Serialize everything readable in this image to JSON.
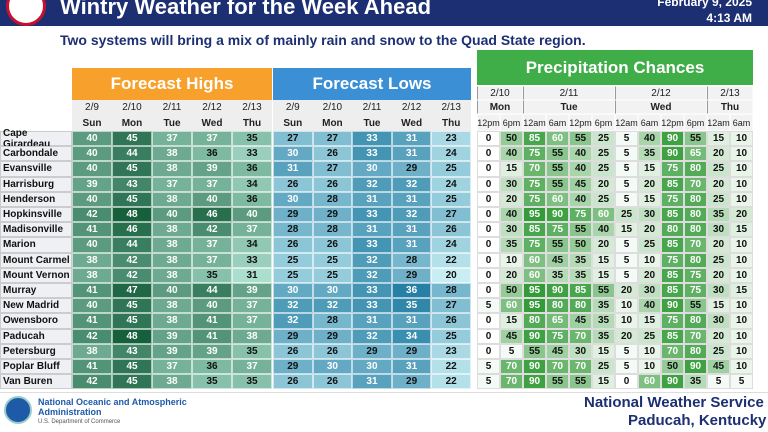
{
  "header": {
    "title": "Wintry Weather for the Week Ahead",
    "date": "February 9, 2025",
    "time": "4:13 AM",
    "subtitle": "Two systems will bring a mix of mainly rain and snow to the Quad State region."
  },
  "highs": {
    "title": "Forecast Highs",
    "dates": [
      "2/9",
      "2/10",
      "2/11",
      "2/12",
      "2/13"
    ],
    "days": [
      "Sun",
      "Mon",
      "Tue",
      "Wed",
      "Thu"
    ]
  },
  "lows": {
    "title": "Forecast Lows",
    "dates": [
      "2/9",
      "2/10",
      "2/11",
      "2/12",
      "2/13"
    ],
    "days": [
      "Sun",
      "Mon",
      "Tue",
      "Wed",
      "Thu"
    ]
  },
  "precip": {
    "title": "Precipitation Chances",
    "groups": [
      {
        "date": "2/10",
        "day": "Mon",
        "times": [
          "12pm",
          "6pm"
        ]
      },
      {
        "date": "2/11",
        "day": "Tue",
        "times": [
          "12am",
          "6am",
          "12pm",
          "6pm"
        ]
      },
      {
        "date": "2/12",
        "day": "Wed",
        "times": [
          "12am",
          "6am",
          "12pm",
          "6pm"
        ]
      },
      {
        "date": "2/13",
        "day": "Thu",
        "times": [
          "12am",
          "6am"
        ]
      }
    ]
  },
  "rows": [
    {
      "city": "Cape Girardeau",
      "highs": [
        40,
        45,
        37,
        37,
        35
      ],
      "lows": [
        27,
        27,
        33,
        31,
        23
      ],
      "precip": [
        0,
        50,
        85,
        60,
        55,
        25,
        5,
        40,
        90,
        55,
        15,
        10
      ]
    },
    {
      "city": "Carbondale",
      "highs": [
        40,
        44,
        38,
        36,
        33
      ],
      "lows": [
        30,
        26,
        33,
        31,
        24
      ],
      "precip": [
        0,
        40,
        75,
        55,
        40,
        25,
        5,
        35,
        90,
        65,
        20,
        10
      ]
    },
    {
      "city": "Evansville",
      "highs": [
        40,
        45,
        38,
        39,
        36
      ],
      "lows": [
        31,
        27,
        30,
        29,
        25
      ],
      "precip": [
        0,
        15,
        70,
        55,
        40,
        25,
        5,
        15,
        75,
        80,
        25,
        10
      ]
    },
    {
      "city": "Harrisburg",
      "highs": [
        39,
        43,
        37,
        37,
        34
      ],
      "lows": [
        26,
        26,
        32,
        32,
        24
      ],
      "precip": [
        0,
        30,
        75,
        55,
        45,
        20,
        5,
        20,
        85,
        70,
        20,
        10
      ]
    },
    {
      "city": "Henderson",
      "highs": [
        40,
        45,
        38,
        40,
        36
      ],
      "lows": [
        30,
        28,
        31,
        31,
        25
      ],
      "precip": [
        0,
        20,
        75,
        60,
        40,
        25,
        5,
        15,
        75,
        80,
        25,
        10
      ]
    },
    {
      "city": "Hopkinsville",
      "highs": [
        42,
        48,
        40,
        46,
        40
      ],
      "lows": [
        29,
        29,
        33,
        32,
        27
      ],
      "precip": [
        0,
        40,
        95,
        90,
        75,
        60,
        25,
        30,
        85,
        80,
        35,
        20
      ]
    },
    {
      "city": "Madisonville",
      "highs": [
        41,
        46,
        38,
        42,
        37
      ],
      "lows": [
        28,
        28,
        31,
        31,
        26
      ],
      "precip": [
        0,
        30,
        85,
        75,
        55,
        40,
        15,
        20,
        80,
        80,
        30,
        15
      ]
    },
    {
      "city": "Marion",
      "highs": [
        40,
        44,
        38,
        37,
        34
      ],
      "lows": [
        26,
        26,
        33,
        31,
        24
      ],
      "precip": [
        0,
        35,
        75,
        55,
        50,
        20,
        5,
        25,
        85,
        70,
        20,
        10
      ]
    },
    {
      "city": "Mount Carmel",
      "highs": [
        38,
        42,
        38,
        37,
        33
      ],
      "lows": [
        25,
        25,
        32,
        28,
        22
      ],
      "precip": [
        0,
        10,
        60,
        45,
        35,
        15,
        5,
        10,
        75,
        80,
        25,
        10
      ]
    },
    {
      "city": "Mount Vernon",
      "highs": [
        38,
        42,
        38,
        35,
        31
      ],
      "lows": [
        25,
        25,
        32,
        29,
        20
      ],
      "precip": [
        0,
        20,
        60,
        35,
        35,
        15,
        5,
        20,
        85,
        75,
        20,
        10
      ]
    },
    {
      "city": "Murray",
      "highs": [
        41,
        47,
        40,
        44,
        39
      ],
      "lows": [
        30,
        30,
        33,
        36,
        28
      ],
      "precip": [
        0,
        50,
        95,
        90,
        85,
        55,
        20,
        30,
        85,
        75,
        30,
        15
      ]
    },
    {
      "city": "New Madrid",
      "highs": [
        40,
        45,
        38,
        40,
        37
      ],
      "lows": [
        32,
        32,
        33,
        35,
        27
      ],
      "precip": [
        5,
        60,
        95,
        80,
        80,
        35,
        10,
        40,
        90,
        55,
        15,
        10
      ]
    },
    {
      "city": "Owensboro",
      "highs": [
        41,
        45,
        38,
        41,
        37
      ],
      "lows": [
        32,
        28,
        31,
        31,
        26
      ],
      "precip": [
        0,
        15,
        80,
        65,
        45,
        35,
        10,
        15,
        75,
        80,
        30,
        10
      ]
    },
    {
      "city": "Paducah",
      "highs": [
        42,
        48,
        39,
        41,
        38
      ],
      "lows": [
        29,
        29,
        32,
        34,
        25
      ],
      "precip": [
        0,
        45,
        90,
        75,
        70,
        35,
        20,
        25,
        85,
        70,
        20,
        10
      ]
    },
    {
      "city": "Petersburg",
      "highs": [
        38,
        43,
        39,
        39,
        35
      ],
      "lows": [
        26,
        26,
        29,
        29,
        23
      ],
      "precip": [
        0,
        5,
        55,
        45,
        30,
        15,
        5,
        10,
        70,
        80,
        25,
        10
      ]
    },
    {
      "city": "Poplar Bluff",
      "highs": [
        41,
        45,
        37,
        36,
        37
      ],
      "lows": [
        29,
        30,
        30,
        31,
        22
      ],
      "precip": [
        5,
        70,
        90,
        70,
        70,
        25,
        5,
        10,
        50,
        90,
        45,
        10
      ]
    },
    {
      "city": "Van Buren",
      "highs": [
        42,
        45,
        38,
        35,
        35
      ],
      "lows": [
        26,
        26,
        31,
        29,
        22
      ],
      "precip": [
        5,
        70,
        90,
        55,
        55,
        15,
        0,
        60,
        90,
        35,
        5,
        5
      ]
    }
  ],
  "footer": {
    "agency": "National Oceanic and Atmospheric Administration",
    "dept": "U.S. Department of Commerce",
    "office": "National Weather Service",
    "location": "Paducah, Kentucky"
  }
}
